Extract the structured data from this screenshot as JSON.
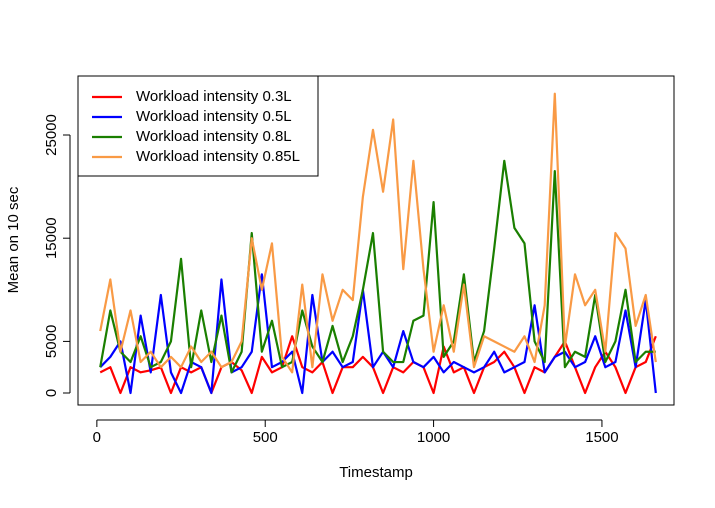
{
  "chart_data": {
    "type": "line",
    "x_label": "Timestamp",
    "y_label": "Mean on 10 sec",
    "x": [
      10,
      40,
      70,
      100,
      130,
      160,
      190,
      220,
      250,
      280,
      310,
      340,
      370,
      400,
      430,
      460,
      490,
      520,
      550,
      580,
      610,
      640,
      670,
      700,
      730,
      760,
      790,
      820,
      850,
      880,
      910,
      940,
      970,
      1000,
      1030,
      1060,
      1090,
      1120,
      1150,
      1180,
      1210,
      1240,
      1270,
      1300,
      1330,
      1360,
      1390,
      1420,
      1450,
      1480,
      1510,
      1540,
      1570,
      1600,
      1630,
      1660
    ],
    "series": [
      {
        "name": "Workload intensity 0.3L",
        "color": "#ff0000",
        "values": [
          2000,
          2500,
          0,
          2500,
          2000,
          2200,
          2500,
          0,
          2500,
          2000,
          2500,
          0,
          2500,
          3000,
          2200,
          0,
          3500,
          2000,
          2500,
          5500,
          2500,
          2000,
          3000,
          0,
          2500,
          2500,
          3500,
          2500,
          0,
          2500,
          2000,
          3000,
          2500,
          0,
          4500,
          2000,
          2500,
          0,
          2500,
          3000,
          4000,
          2500,
          0,
          2500,
          2000,
          3500,
          5000,
          2500,
          0,
          2500,
          4000,
          2500,
          0,
          2500,
          3000,
          5500
        ]
      },
      {
        "name": "Workload intensity 0.5L",
        "color": "#0000ff",
        "values": [
          2500,
          3500,
          5000,
          0,
          7500,
          2000,
          9500,
          2000,
          0,
          3000,
          2500,
          0,
          11000,
          2000,
          2500,
          4000,
          11500,
          2500,
          3000,
          4000,
          0,
          9500,
          3000,
          4000,
          2500,
          3000,
          10000,
          2500,
          4000,
          2500,
          6000,
          3000,
          2500,
          3500,
          2000,
          3000,
          2500,
          2000,
          2500,
          4000,
          2000,
          2500,
          3000,
          8500,
          2000,
          3500,
          4000,
          2500,
          3000,
          5500,
          2500,
          3000,
          8000,
          2500,
          9000,
          0
        ]
      },
      {
        "name": "Workload intensity 0.8L",
        "color": "#1a7f00",
        "values": [
          2500,
          8000,
          4000,
          3000,
          5500,
          2500,
          3000,
          5000,
          13000,
          2500,
          8000,
          3000,
          7500,
          2000,
          4000,
          15500,
          4000,
          7000,
          2500,
          3000,
          8000,
          4500,
          3000,
          6500,
          3000,
          5500,
          10000,
          15500,
          4000,
          3000,
          3000,
          7000,
          7500,
          18500,
          3500,
          5000,
          11500,
          3000,
          6000,
          14000,
          22500,
          16000,
          14500,
          5000,
          3000,
          21500,
          2500,
          4000,
          3500,
          9500,
          3000,
          5000,
          10000,
          3000,
          4000,
          4000
        ]
      },
      {
        "name": "Workload intensity 0.85L",
        "color": "#f99a45",
        "values": [
          6000,
          11000,
          4000,
          8000,
          3000,
          4000,
          2500,
          3500,
          2500,
          4500,
          3000,
          4000,
          2500,
          3000,
          5000,
          15000,
          10000,
          14500,
          3500,
          2000,
          10500,
          2500,
          11500,
          7000,
          10000,
          9000,
          19000,
          25500,
          19500,
          26500,
          12000,
          22500,
          12000,
          4000,
          8500,
          4000,
          10500,
          2500,
          5500,
          5000,
          4500,
          4000,
          5500,
          3000,
          8500,
          29000,
          4500,
          11500,
          8500,
          10000,
          4000,
          15500,
          14000,
          6500,
          9500,
          3000
        ]
      }
    ],
    "xlim": [
      -56,
      1714
    ],
    "ylim": [
      -1163,
      30717
    ],
    "xticks": [
      0,
      500,
      1000,
      1500
    ],
    "yticks": [
      0,
      5000,
      15000,
      25000
    ],
    "legend": "top-left"
  }
}
